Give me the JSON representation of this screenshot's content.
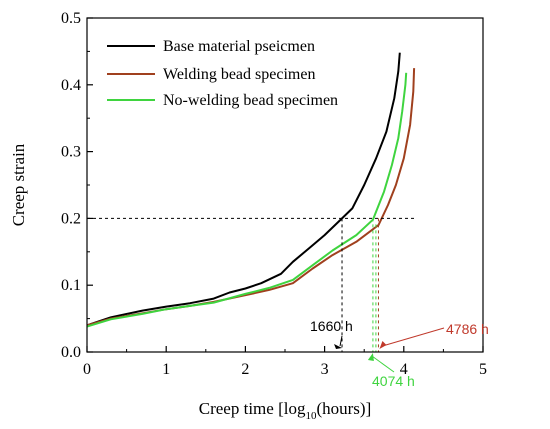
{
  "chart_data": {
    "type": "line",
    "title": "",
    "xlabel_main": "Creep time [log",
    "xlabel_sub": "10",
    "xlabel_tail": "(hours)]",
    "ylabel": "Creep strain",
    "xlim": [
      0,
      5
    ],
    "ylim": [
      0,
      0.5
    ],
    "x_ticks": [
      "0",
      "1",
      "2",
      "3",
      "4",
      "5"
    ],
    "y_ticks": [
      "0.0",
      "0.1",
      "0.2",
      "0.3",
      "0.4",
      "0.5"
    ],
    "grid": false,
    "legend_position": "top-left",
    "reference_line_y": 0.2,
    "series": [
      {
        "name": "Base material pseicmen",
        "color": "#000000",
        "x": [
          0.0,
          0.3,
          0.7,
          1.0,
          1.3,
          1.6,
          1.8,
          2.0,
          2.2,
          2.45,
          2.6,
          2.8,
          3.0,
          3.22,
          3.35,
          3.5,
          3.65,
          3.78,
          3.88,
          3.93,
          3.95
        ],
        "y": [
          0.04,
          0.052,
          0.062,
          0.068,
          0.073,
          0.08,
          0.089,
          0.095,
          0.103,
          0.117,
          0.135,
          0.155,
          0.175,
          0.2,
          0.215,
          0.25,
          0.29,
          0.33,
          0.38,
          0.42,
          0.448
        ]
      },
      {
        "name": "Welding bead specimen",
        "color": "#a0401e",
        "x": [
          0.0,
          0.3,
          0.7,
          1.0,
          1.3,
          1.6,
          2.0,
          2.3,
          2.6,
          2.85,
          3.1,
          3.4,
          3.68,
          3.8,
          3.9,
          4.0,
          4.08,
          4.12,
          4.13
        ],
        "y": [
          0.04,
          0.05,
          0.058,
          0.064,
          0.069,
          0.075,
          0.085,
          0.093,
          0.103,
          0.125,
          0.145,
          0.165,
          0.19,
          0.22,
          0.25,
          0.29,
          0.34,
          0.39,
          0.425
        ]
      },
      {
        "name": "No-welding bead specimen",
        "color": "#3fd43f",
        "x": [
          0.0,
          0.3,
          0.7,
          1.0,
          1.3,
          1.6,
          2.0,
          2.3,
          2.6,
          2.85,
          3.1,
          3.4,
          3.61,
          3.75,
          3.85,
          3.93,
          3.98,
          4.02,
          4.03
        ],
        "y": [
          0.038,
          0.049,
          0.057,
          0.064,
          0.069,
          0.074,
          0.087,
          0.096,
          0.108,
          0.13,
          0.152,
          0.175,
          0.198,
          0.24,
          0.28,
          0.32,
          0.36,
          0.4,
          0.418
        ]
      }
    ],
    "annotations": [
      {
        "label": "1660 h",
        "color": "#000000",
        "x": 3.22
      },
      {
        "label": "4074 h",
        "color": "#3fd43f",
        "x": 3.61
      },
      {
        "label": "4786 h",
        "color": "#c0392b",
        "x": 3.68
      }
    ]
  }
}
